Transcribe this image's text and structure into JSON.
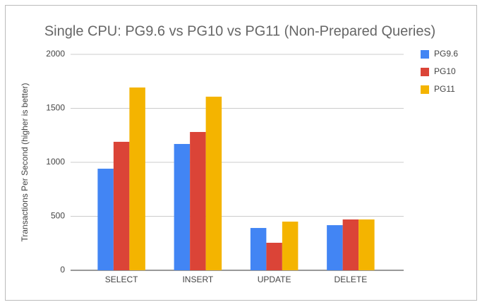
{
  "chart_data": {
    "type": "bar",
    "title": "Single CPU: PG9.6 vs PG10 vs PG11 (Non-Prepared Queries)",
    "y_label": "Transactions Per Second (higher is better)",
    "categories": [
      "SELECT",
      "INSERT",
      "UPDATE",
      "DELETE"
    ],
    "series": [
      {
        "name": "PG9.6",
        "color": "#4285f4",
        "values": [
          941,
          1170,
          392,
          418
        ]
      },
      {
        "name": "PG10",
        "color": "#db4437",
        "values": [
          1190,
          1281,
          255,
          471
        ]
      },
      {
        "name": "PG11",
        "color": "#f4b400",
        "values": [
          1693,
          1608,
          451,
          471
        ]
      }
    ],
    "ylim": [
      0,
      2000
    ],
    "yticks": [
      0,
      500,
      1000,
      1500,
      2000
    ],
    "grid": true,
    "legend": "right"
  }
}
